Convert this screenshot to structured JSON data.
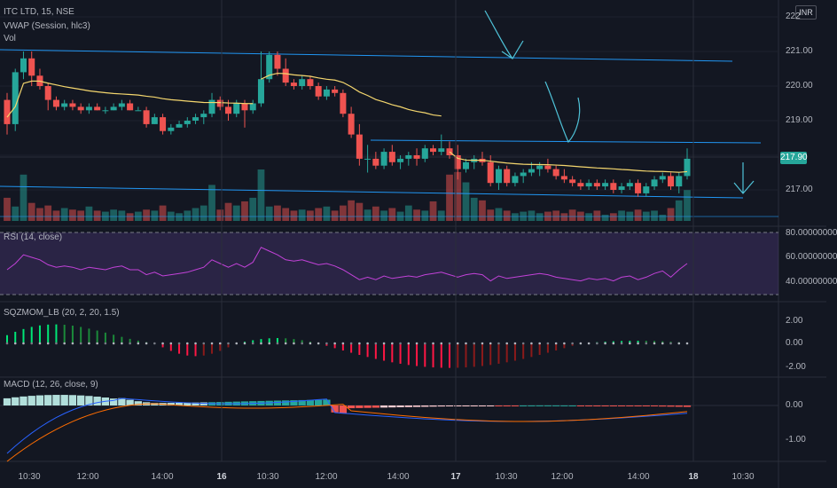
{
  "header": {
    "symbol": "ITC LTD, 15, NSE",
    "vwap": "VWAP (Session, hlc3)",
    "vol": "Vol"
  },
  "indicators": {
    "rsi": "RSI (14, close)",
    "sqzmom": "SQZMOM_LB (20, 2, 20, 1.5)",
    "macd": "MACD (12, 26, close, 9)"
  },
  "price_axis": {
    "labels": [
      "222",
      "221.00",
      "220.00",
      "219.00",
      "217.00"
    ],
    "current_price": "217.90",
    "currency": "INR"
  },
  "rsi_axis": [
    "80.00000000",
    "60.00000000",
    "40.00000000"
  ],
  "sqz_axis": [
    "2.00",
    "0.00",
    "-2.00"
  ],
  "macd_axis": [
    "0.00",
    "-1.00"
  ],
  "time_axis": [
    {
      "label": "10:30",
      "bold": false
    },
    {
      "label": "12:00",
      "bold": false
    },
    {
      "label": "14:00",
      "bold": false
    },
    {
      "label": "16",
      "bold": true
    },
    {
      "label": "10:30",
      "bold": false
    },
    {
      "label": "12:00",
      "bold": false
    },
    {
      "label": "14:00",
      "bold": false
    },
    {
      "label": "17",
      "bold": true
    },
    {
      "label": "10:30",
      "bold": false
    },
    {
      "label": "12:00",
      "bold": false
    },
    {
      "label": "14:00",
      "bold": false
    },
    {
      "label": "18",
      "bold": true
    },
    {
      "label": "10:30",
      "bold": false
    }
  ],
  "colors": {
    "up": "#26a69a",
    "down": "#ef5350",
    "vwap": "#f5d76e",
    "rsi": "#c242d8",
    "trend": "#2196f3",
    "macd": "#2962ff",
    "signal": "#ff6d00"
  },
  "chart_data": {
    "type": "candlestick",
    "ohlc": [
      [
        219.6,
        219.8,
        218.6,
        218.9
      ],
      [
        218.9,
        220.5,
        218.7,
        220.4
      ],
      [
        220.4,
        221.0,
        220.2,
        220.8
      ],
      [
        220.8,
        221.0,
        220.0,
        220.3
      ],
      [
        220.3,
        220.5,
        219.9,
        220.0
      ],
      [
        220.0,
        220.1,
        219.3,
        219.6
      ],
      [
        219.6,
        219.7,
        219.3,
        219.4
      ],
      [
        219.4,
        219.6,
        219.3,
        219.5
      ],
      [
        219.5,
        219.6,
        219.3,
        219.4
      ],
      [
        219.4,
        219.5,
        219.2,
        219.3
      ],
      [
        219.3,
        219.5,
        219.2,
        219.4
      ],
      [
        219.4,
        219.5,
        219.3,
        219.3
      ],
      [
        219.3,
        219.4,
        219.2,
        219.3
      ],
      [
        219.3,
        219.5,
        219.3,
        219.4
      ],
      [
        219.4,
        219.6,
        219.3,
        219.5
      ],
      [
        219.5,
        219.6,
        219.3,
        219.3
      ],
      [
        219.3,
        219.4,
        219.3,
        219.3
      ],
      [
        219.3,
        219.4,
        218.8,
        218.9
      ],
      [
        218.9,
        219.2,
        218.9,
        219.1
      ],
      [
        219.1,
        219.2,
        218.6,
        218.7
      ],
      [
        218.7,
        218.9,
        218.6,
        218.8
      ],
      [
        218.8,
        219.0,
        218.8,
        218.9
      ],
      [
        218.9,
        219.1,
        218.8,
        219.0
      ],
      [
        219.0,
        219.2,
        218.9,
        219.1
      ],
      [
        219.1,
        219.3,
        218.9,
        219.2
      ],
      [
        219.2,
        219.8,
        219.1,
        219.6
      ],
      [
        219.6,
        219.7,
        219.3,
        219.4
      ],
      [
        219.4,
        219.6,
        219.0,
        219.2
      ],
      [
        219.2,
        219.6,
        219.1,
        219.5
      ],
      [
        219.5,
        219.6,
        218.8,
        219.3
      ],
      [
        219.3,
        219.6,
        219.2,
        219.5
      ],
      [
        219.5,
        221.0,
        219.4,
        220.2
      ],
      [
        220.2,
        221.0,
        220.1,
        220.9
      ],
      [
        220.9,
        221.0,
        220.3,
        220.5
      ],
      [
        220.5,
        220.8,
        220.0,
        220.1
      ],
      [
        220.1,
        220.2,
        219.9,
        220.0
      ],
      [
        220.0,
        220.3,
        219.9,
        220.2
      ],
      [
        220.2,
        220.3,
        219.9,
        220.0
      ],
      [
        220.0,
        220.1,
        219.6,
        219.7
      ],
      [
        219.7,
        220.0,
        219.6,
        219.9
      ],
      [
        219.9,
        220.0,
        219.7,
        219.8
      ],
      [
        219.8,
        219.9,
        219.1,
        219.2
      ],
      [
        219.2,
        219.4,
        218.5,
        218.6
      ],
      [
        218.6,
        218.9,
        217.7,
        217.9
      ],
      [
        217.9,
        218.3,
        217.5,
        217.9
      ],
      [
        217.9,
        218.1,
        217.6,
        217.7
      ],
      [
        217.7,
        218.2,
        217.6,
        218.1
      ],
      [
        218.1,
        218.3,
        217.7,
        217.8
      ],
      [
        217.8,
        218.0,
        217.6,
        217.9
      ],
      [
        217.9,
        218.1,
        217.7,
        218.0
      ],
      [
        218.0,
        218.2,
        217.7,
        217.9
      ],
      [
        217.9,
        218.3,
        217.8,
        218.2
      ],
      [
        218.2,
        218.3,
        218.0,
        218.1
      ],
      [
        218.1,
        218.6,
        218.0,
        218.2
      ],
      [
        218.2,
        218.4,
        217.9,
        218.0
      ],
      [
        218.0,
        218.3,
        217.3,
        217.6
      ],
      [
        217.6,
        217.9,
        217.5,
        217.8
      ],
      [
        217.8,
        218.0,
        217.6,
        217.9
      ],
      [
        217.9,
        218.1,
        217.7,
        217.8
      ],
      [
        217.8,
        218.0,
        217.1,
        217.2
      ],
      [
        217.2,
        217.7,
        217.0,
        217.6
      ],
      [
        217.6,
        217.7,
        217.1,
        217.2
      ],
      [
        217.2,
        217.5,
        217.1,
        217.4
      ],
      [
        217.4,
        217.6,
        217.2,
        217.5
      ],
      [
        217.5,
        217.8,
        217.4,
        217.6
      ],
      [
        217.6,
        217.8,
        217.4,
        217.7
      ],
      [
        217.7,
        217.9,
        217.5,
        217.6
      ],
      [
        217.6,
        217.7,
        217.3,
        217.4
      ],
      [
        217.4,
        217.6,
        217.2,
        217.3
      ],
      [
        217.3,
        217.4,
        217.1,
        217.2
      ],
      [
        217.2,
        217.3,
        217.0,
        217.1
      ],
      [
        217.1,
        217.3,
        217.0,
        217.2
      ],
      [
        217.2,
        217.3,
        217.0,
        217.1
      ],
      [
        217.1,
        217.3,
        217.0,
        217.2
      ],
      [
        217.2,
        217.3,
        216.9,
        217.0
      ],
      [
        217.0,
        217.2,
        216.9,
        217.1
      ],
      [
        217.1,
        217.3,
        217.0,
        217.2
      ],
      [
        217.2,
        217.3,
        216.8,
        216.9
      ],
      [
        216.9,
        217.2,
        216.8,
        217.1
      ],
      [
        217.1,
        217.4,
        217.0,
        217.3
      ],
      [
        217.3,
        217.5,
        217.2,
        217.4
      ],
      [
        217.4,
        217.5,
        217.0,
        217.1
      ],
      [
        217.1,
        217.5,
        216.9,
        217.4
      ],
      [
        217.4,
        218.2,
        217.3,
        217.9
      ]
    ],
    "volume": [
      0.45,
      0.28,
      0.9,
      0.35,
      0.25,
      0.3,
      0.2,
      0.25,
      0.22,
      0.2,
      0.28,
      0.2,
      0.18,
      0.22,
      0.2,
      0.15,
      0.18,
      0.22,
      0.2,
      0.3,
      0.18,
      0.15,
      0.2,
      0.25,
      0.3,
      0.7,
      0.22,
      0.35,
      0.3,
      0.38,
      0.45,
      1.0,
      0.28,
      0.3,
      0.25,
      0.2,
      0.22,
      0.2,
      0.25,
      0.28,
      0.2,
      0.3,
      0.4,
      0.35,
      0.22,
      0.28,
      0.2,
      0.25,
      0.18,
      0.3,
      0.22,
      0.2,
      0.38,
      0.2,
      0.9,
      0.95,
      0.75,
      0.45,
      0.4,
      0.22,
      0.25,
      0.2,
      0.15,
      0.18,
      0.2,
      0.15,
      0.18,
      0.2,
      0.15,
      0.22,
      0.18,
      0.15,
      0.2,
      0.12,
      0.15,
      0.2,
      0.18,
      0.22,
      0.18,
      0.2,
      0.12,
      0.25,
      0.4,
      0.6
    ],
    "rsi": [
      50,
      55,
      62,
      60,
      58,
      54,
      52,
      53,
      52,
      50,
      52,
      51,
      50,
      52,
      53,
      50,
      50,
      46,
      48,
      45,
      46,
      47,
      48,
      50,
      52,
      58,
      55,
      52,
      55,
      52,
      56,
      68,
      65,
      62,
      58,
      57,
      58,
      56,
      54,
      55,
      53,
      50,
      46,
      42,
      44,
      42,
      45,
      43,
      44,
      45,
      44,
      46,
      47,
      48,
      46,
      44,
      46,
      47,
      46,
      41,
      45,
      43,
      44,
      45,
      46,
      47,
      46,
      44,
      43,
      42,
      41,
      43,
      42,
      43,
      41,
      44,
      45,
      42,
      44,
      47,
      49,
      44,
      50,
      55
    ]
  }
}
